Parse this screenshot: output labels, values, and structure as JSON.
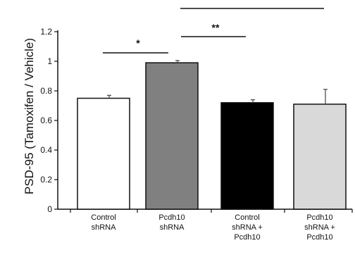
{
  "chart_data": {
    "type": "bar",
    "title": "",
    "xlabel": "",
    "ylabel": "PSD-95 (Tamoxifen / Vehicle)",
    "ylim": [
      0,
      1.2
    ],
    "yticks": [
      "0",
      "0.2",
      "0.4",
      "0.6",
      "0.8",
      "1",
      "1.2"
    ],
    "grid": false,
    "categories": [
      [
        "Control",
        "shRNA"
      ],
      [
        "Pcdh10",
        "shRNA"
      ],
      [
        "Control",
        "shRNA +",
        "Pcdh10"
      ],
      [
        "Pcdh10",
        "shRNA +",
        "Pcdh10"
      ]
    ],
    "values": [
      0.75,
      0.99,
      0.72,
      0.71
    ],
    "errors": [
      0.02,
      0.015,
      0.02,
      0.1
    ],
    "colors": [
      "#ffffff",
      "#808080",
      "#000000",
      "#d9d9d9"
    ],
    "significance": [
      {
        "from": 0,
        "to": 1,
        "label": "*"
      },
      {
        "from": 1,
        "to": 2,
        "label": "**"
      },
      {
        "from": 1,
        "to": 3,
        "label": ""
      }
    ]
  }
}
